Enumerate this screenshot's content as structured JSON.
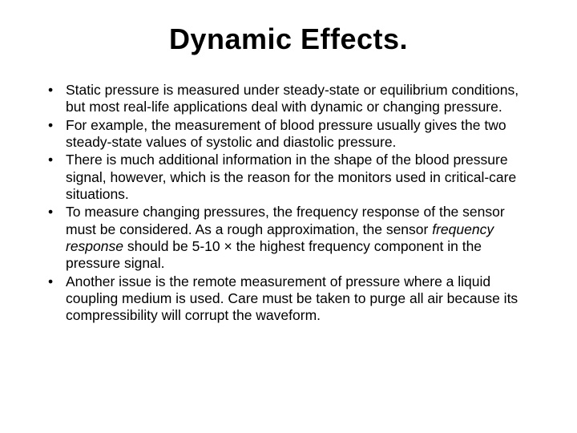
{
  "title": "Dynamic Effects.",
  "bullets": [
    {
      "text": "Static pressure is measured under steady-state or equilibrium conditions, but most real-life applications deal with dynamic or changing pressure."
    },
    {
      "text": "For example, the measurement of blood pressure usually gives the two steady-state values of systolic and diastolic pressure."
    },
    {
      "text": "There is much additional information in the shape of the blood pressure signal, however, which is the reason for the monitors used in critical-care situations."
    },
    {
      "pre": "To measure changing pressures, the frequency response of the sensor must be considered. As a rough approximation, the sensor ",
      "em": "frequency response",
      "post": " should be 5-10 × the highest frequency component in the pressure signal."
    },
    {
      "text": "Another issue is the remote measurement of pressure where a liquid coupling medium is used. Care must be taken to purge all air because its compressibility will corrupt the waveform."
    }
  ],
  "style": {
    "background_color": "#ffffff",
    "text_color": "#000000",
    "title_fontsize": 36,
    "title_fontweight": "bold",
    "body_fontsize": 17.5,
    "line_height": 1.22,
    "font_family": "Arial, Helvetica, sans-serif",
    "bullet_char": "•",
    "slide_width": 720,
    "slide_height": 540
  }
}
